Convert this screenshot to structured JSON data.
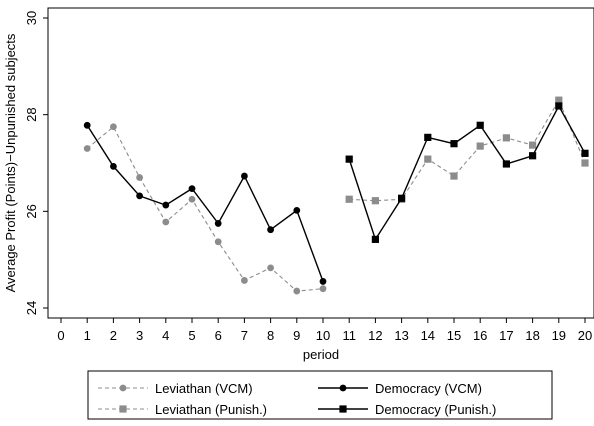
{
  "chart_data": {
    "type": "line",
    "xlabel": "period",
    "ylabel": "Average Profit (Points)−Unpunished subjects",
    "xlim": [
      0,
      20
    ],
    "ylim": [
      24,
      30
    ],
    "xticks": [
      0,
      1,
      2,
      3,
      4,
      5,
      6,
      7,
      8,
      9,
      10,
      11,
      12,
      13,
      14,
      15,
      16,
      17,
      18,
      19,
      20
    ],
    "yticks": [
      24,
      26,
      28,
      30
    ],
    "grid": false,
    "legend_position": "bottom",
    "series": [
      {
        "name": "Leviathan (VCM)",
        "color": "#8c8c8c",
        "dash": true,
        "marker": "circle",
        "x": [
          1,
          2,
          3,
          4,
          5,
          6,
          7,
          8,
          9,
          10
        ],
        "y": [
          27.3,
          27.75,
          26.7,
          25.78,
          26.25,
          25.37,
          24.57,
          24.83,
          24.35,
          24.4
        ]
      },
      {
        "name": "Democracy (VCM)",
        "color": "#000000",
        "dash": false,
        "marker": "circle",
        "x": [
          1,
          2,
          3,
          4,
          5,
          6,
          7,
          8,
          9,
          10
        ],
        "y": [
          27.78,
          26.93,
          26.32,
          26.13,
          26.47,
          25.75,
          26.73,
          25.62,
          26.02,
          24.55
        ]
      },
      {
        "name": "Leviathan (Punish.)",
        "color": "#8c8c8c",
        "dash": true,
        "marker": "square",
        "x": [
          11,
          12,
          13,
          14,
          15,
          16,
          17,
          18,
          19,
          20
        ],
        "y": [
          26.25,
          26.22,
          26.25,
          27.08,
          26.73,
          27.35,
          27.52,
          27.37,
          28.3,
          27.0
        ]
      },
      {
        "name": "Democracy (Punish.)",
        "color": "#000000",
        "dash": false,
        "marker": "square",
        "x": [
          11,
          12,
          13,
          14,
          15,
          16,
          17,
          18,
          19,
          20
        ],
        "y": [
          27.08,
          25.42,
          26.27,
          27.53,
          27.4,
          27.78,
          26.98,
          27.15,
          28.18,
          27.2
        ]
      }
    ]
  }
}
